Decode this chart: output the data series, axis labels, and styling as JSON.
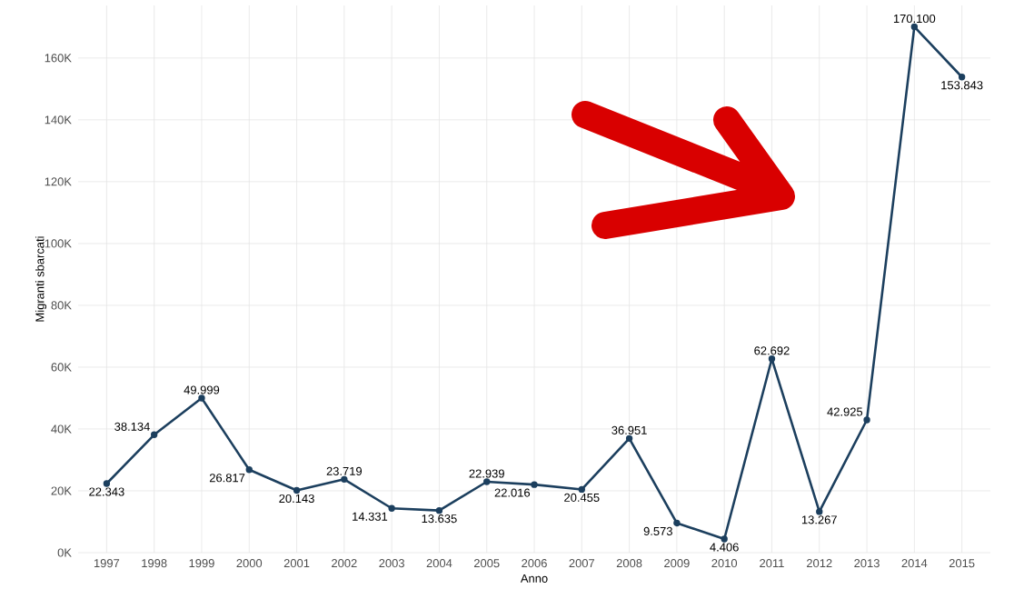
{
  "chart_data": {
    "type": "line",
    "xlabel": "Anno",
    "ylabel": "Migranti sbarcati",
    "categories": [
      "1997",
      "1998",
      "1999",
      "2000",
      "2001",
      "2002",
      "2003",
      "2004",
      "2005",
      "2006",
      "2007",
      "2008",
      "2009",
      "2010",
      "2011",
      "2012",
      "2013",
      "2014",
      "2015"
    ],
    "series": [
      {
        "color": "#1c3f5e",
        "values": [
          22343,
          38134,
          49999,
          26817,
          20143,
          23719,
          14331,
          13635,
          22939,
          22016,
          20455,
          36951,
          9573,
          4406,
          62692,
          13267,
          42925,
          170100,
          153843
        ],
        "value_labels": [
          "22.343",
          "38.134",
          "49.999",
          "26.817",
          "20.143",
          "23.719",
          "14.331",
          "13.635",
          "22.939",
          "22.016",
          "20.455",
          "36.951",
          "9.573",
          "4.406",
          "62.692",
          "13.267",
          "42.925",
          "170.100",
          "153.843"
        ]
      }
    ],
    "ylim": [
      0,
      177000
    ],
    "yticks": [
      {
        "value": 0,
        "label": "0K"
      },
      {
        "value": 20000,
        "label": "20K"
      },
      {
        "value": 40000,
        "label": "40K"
      },
      {
        "value": 60000,
        "label": "60K"
      },
      {
        "value": 80000,
        "label": "80K"
      },
      {
        "value": 100000,
        "label": "100K"
      },
      {
        "value": 120000,
        "label": "120K"
      },
      {
        "value": 140000,
        "label": "140K"
      },
      {
        "value": 160000,
        "label": "160K"
      }
    ],
    "grid": true,
    "marker": "circle",
    "line_style": "solid"
  }
}
